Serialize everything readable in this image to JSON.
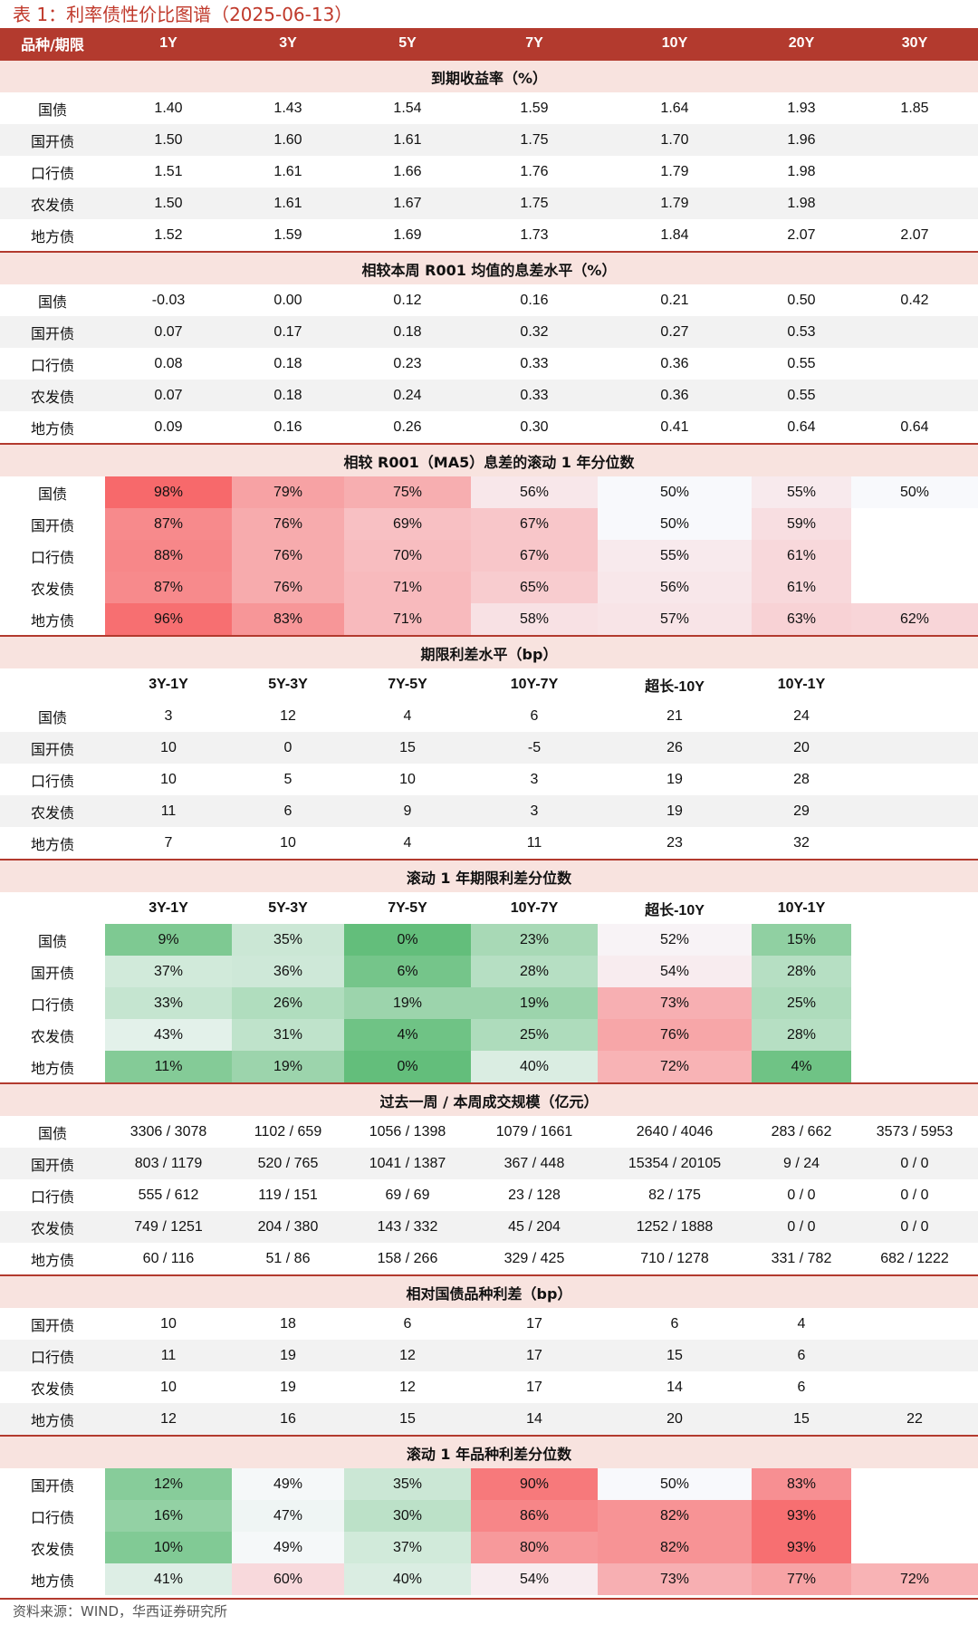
{
  "title": "表 1：利率债性价比图谱（2025-06-13）",
  "footer": "资料来源：WIND，华西证券研究所",
  "header": [
    "品种/期限",
    "1Y",
    "3Y",
    "5Y",
    "7Y",
    "10Y",
    "20Y",
    "30Y"
  ],
  "sections": [
    {
      "name": "到期收益率（%）",
      "heat": "none",
      "rows": [
        [
          "国债",
          "1.40",
          "1.43",
          "1.54",
          "1.59",
          "1.64",
          "1.93",
          "1.85"
        ],
        [
          "国开债",
          "1.50",
          "1.60",
          "1.61",
          "1.75",
          "1.70",
          "1.96",
          ""
        ],
        [
          "口行债",
          "1.51",
          "1.61",
          "1.66",
          "1.76",
          "1.79",
          "1.98",
          ""
        ],
        [
          "农发债",
          "1.50",
          "1.61",
          "1.67",
          "1.75",
          "1.79",
          "1.98",
          ""
        ],
        [
          "地方债",
          "1.52",
          "1.59",
          "1.69",
          "1.73",
          "1.84",
          "2.07",
          "2.07"
        ]
      ]
    },
    {
      "name": "相较本周 R001 均值的息差水平（%）",
      "heat": "none",
      "rows": [
        [
          "国债",
          "-0.03",
          "0.00",
          "0.12",
          "0.16",
          "0.21",
          "0.50",
          "0.42"
        ],
        [
          "国开债",
          "0.07",
          "0.17",
          "0.18",
          "0.32",
          "0.27",
          "0.53",
          ""
        ],
        [
          "口行债",
          "0.08",
          "0.18",
          "0.23",
          "0.33",
          "0.36",
          "0.55",
          ""
        ],
        [
          "农发债",
          "0.07",
          "0.18",
          "0.24",
          "0.33",
          "0.36",
          "0.55",
          ""
        ],
        [
          "地方债",
          "0.09",
          "0.16",
          "0.26",
          "0.30",
          "0.41",
          "0.64",
          "0.64"
        ]
      ]
    },
    {
      "name": "相较 R001（MA5）息差的滚动 1 年分位数",
      "heat": "red",
      "rows": [
        [
          "国债",
          "98%",
          "79%",
          "75%",
          "56%",
          "50%",
          "55%",
          "50%"
        ],
        [
          "国开债",
          "87%",
          "76%",
          "69%",
          "67%",
          "50%",
          "59%",
          ""
        ],
        [
          "口行债",
          "88%",
          "76%",
          "70%",
          "67%",
          "55%",
          "61%",
          ""
        ],
        [
          "农发债",
          "87%",
          "76%",
          "71%",
          "65%",
          "56%",
          "61%",
          ""
        ],
        [
          "地方债",
          "96%",
          "83%",
          "71%",
          "58%",
          "57%",
          "63%",
          "62%"
        ]
      ]
    },
    {
      "name": "期限利差水平（bp）",
      "heat": "none",
      "subheader": [
        "",
        "3Y-1Y",
        "5Y-3Y",
        "7Y-5Y",
        "10Y-7Y",
        "超长-10Y",
        "10Y-1Y",
        ""
      ],
      "rows": [
        [
          "国债",
          "3",
          "12",
          "4",
          "6",
          "21",
          "24",
          ""
        ],
        [
          "国开债",
          "10",
          "0",
          "15",
          "-5",
          "26",
          "20",
          ""
        ],
        [
          "口行债",
          "10",
          "5",
          "10",
          "3",
          "19",
          "28",
          ""
        ],
        [
          "农发债",
          "11",
          "6",
          "9",
          "3",
          "19",
          "29",
          ""
        ],
        [
          "地方债",
          "7",
          "10",
          "4",
          "11",
          "23",
          "32",
          ""
        ]
      ]
    },
    {
      "name": "滚动 1 年期限利差分位数",
      "heat": "green",
      "subheader": [
        "",
        "3Y-1Y",
        "5Y-3Y",
        "7Y-5Y",
        "10Y-7Y",
        "超长-10Y",
        "10Y-1Y",
        ""
      ],
      "rows": [
        [
          "国债",
          "9%",
          "35%",
          "0%",
          "23%",
          "52%",
          "15%",
          ""
        ],
        [
          "国开债",
          "37%",
          "36%",
          "6%",
          "28%",
          "54%",
          "28%",
          ""
        ],
        [
          "口行债",
          "33%",
          "26%",
          "19%",
          "19%",
          "73%",
          "25%",
          ""
        ],
        [
          "农发债",
          "43%",
          "31%",
          "4%",
          "25%",
          "76%",
          "28%",
          ""
        ],
        [
          "地方债",
          "11%",
          "19%",
          "0%",
          "40%",
          "72%",
          "4%",
          ""
        ]
      ]
    },
    {
      "name": "过去一周 / 本周成交规模（亿元）",
      "heat": "none",
      "rows": [
        [
          "国债",
          "3306 / 3078",
          "1102 / 659",
          "1056 / 1398",
          "1079 / 1661",
          "2640 / 4046",
          "283 / 662",
          "3573 / 5953"
        ],
        [
          "国开债",
          "803 / 1179",
          "520 / 765",
          "1041 / 1387",
          "367 / 448",
          "15354 / 20105",
          "9 / 24",
          "0 / 0"
        ],
        [
          "口行债",
          "555 / 612",
          "119 / 151",
          "69 / 69",
          "23 / 128",
          "82 / 175",
          "0 / 0",
          "0 / 0"
        ],
        [
          "农发债",
          "749 / 1251",
          "204 / 380",
          "143 / 332",
          "45 / 204",
          "1252 / 1888",
          "0 / 0",
          "0 / 0"
        ],
        [
          "地方债",
          "60 / 116",
          "51 / 86",
          "158 / 266",
          "329 / 425",
          "710 / 1278",
          "331 / 782",
          "682 / 1222"
        ]
      ]
    },
    {
      "name": "相对国债品种利差（bp）",
      "heat": "none",
      "rows": [
        [
          "国开债",
          "10",
          "18",
          "6",
          "17",
          "6",
          "4",
          ""
        ],
        [
          "口行债",
          "11",
          "19",
          "12",
          "17",
          "15",
          "6",
          ""
        ],
        [
          "农发债",
          "10",
          "19",
          "12",
          "17",
          "14",
          "6",
          ""
        ],
        [
          "地方债",
          "12",
          "16",
          "15",
          "14",
          "20",
          "15",
          "22"
        ]
      ]
    },
    {
      "name": "滚动 1 年品种利差分位数",
      "heat": "green",
      "rows": [
        [
          "国开债",
          "12%",
          "49%",
          "35%",
          "90%",
          "50%",
          "83%",
          ""
        ],
        [
          "口行债",
          "16%",
          "47%",
          "30%",
          "86%",
          "82%",
          "93%",
          ""
        ],
        [
          "农发债",
          "10%",
          "49%",
          "37%",
          "80%",
          "82%",
          "93%",
          ""
        ],
        [
          "地方债",
          "41%",
          "60%",
          "40%",
          "54%",
          "73%",
          "77%",
          "72%"
        ]
      ]
    }
  ]
}
